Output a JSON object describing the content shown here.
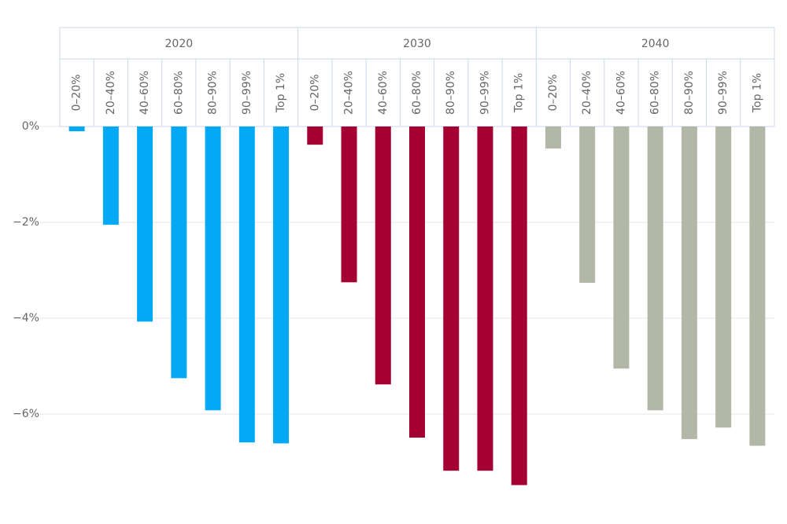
{
  "chart_data": {
    "type": "bar",
    "categories": [
      "0–20%",
      "20–40%",
      "40–60%",
      "60–80%",
      "80–90%",
      "90–99%",
      "Top 1%"
    ],
    "series": [
      {
        "name": "2020",
        "color": "#03a9f4",
        "values": [
          -0.1,
          -2.05,
          -4.07,
          -5.25,
          -5.92,
          -6.59,
          -6.61
        ]
      },
      {
        "name": "2030",
        "color": "#a50034",
        "values": [
          -0.38,
          -3.25,
          -5.38,
          -6.49,
          -7.18,
          -7.18,
          -7.48
        ]
      },
      {
        "name": "2040",
        "color": "#b3b7a8",
        "values": [
          -0.46,
          -3.26,
          -5.05,
          -5.92,
          -6.52,
          -6.28,
          -6.66
        ]
      }
    ],
    "ylim": [
      -7.8,
      0
    ],
    "yticks": [
      {
        "value": 0,
        "label": "0%"
      },
      {
        "value": -2,
        "label": "−2%"
      },
      {
        "value": -4,
        "label": "−4%"
      },
      {
        "value": -6,
        "label": "−6%"
      }
    ],
    "grid": true
  }
}
